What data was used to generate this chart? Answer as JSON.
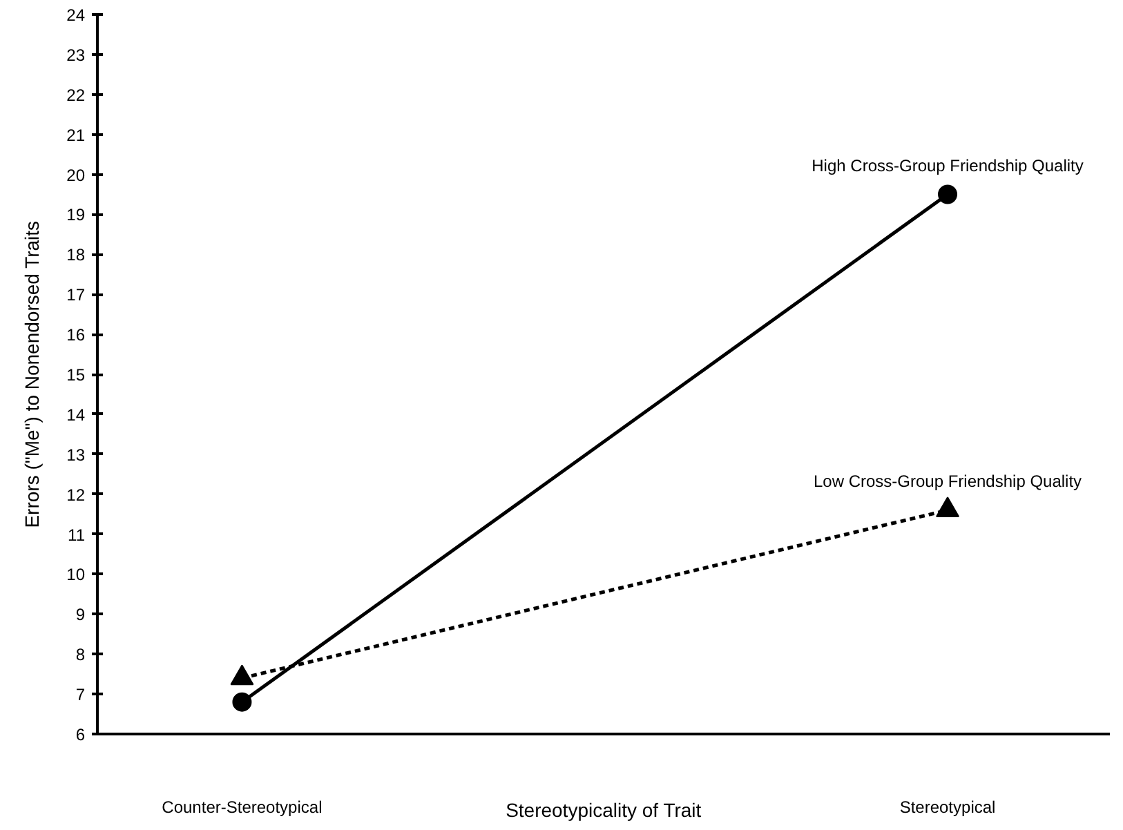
{
  "chart_data": {
    "type": "line",
    "xlabel": "Stereotypicality of Trait",
    "ylabel": "Errors (\"Me\") to Nonendorsed Traits",
    "categories": [
      "Counter-Stereotypical",
      "Stereotypical"
    ],
    "ylim": [
      6,
      24
    ],
    "yticks": [
      6,
      7,
      8,
      9,
      10,
      11,
      12,
      13,
      14,
      15,
      16,
      17,
      18,
      19,
      20,
      21,
      22,
      23,
      24
    ],
    "grid": false,
    "series": [
      {
        "name": "High Cross-Group Friendship Quality",
        "color": "#000000",
        "values": [
          6.8,
          19.5
        ],
        "marker": "circle",
        "line_style": "solid"
      },
      {
        "name": "Low Cross-Group Friendship Quality",
        "color": "#000000",
        "values": [
          7.4,
          11.6
        ],
        "marker": "triangle",
        "line_style": "dashed"
      }
    ]
  }
}
